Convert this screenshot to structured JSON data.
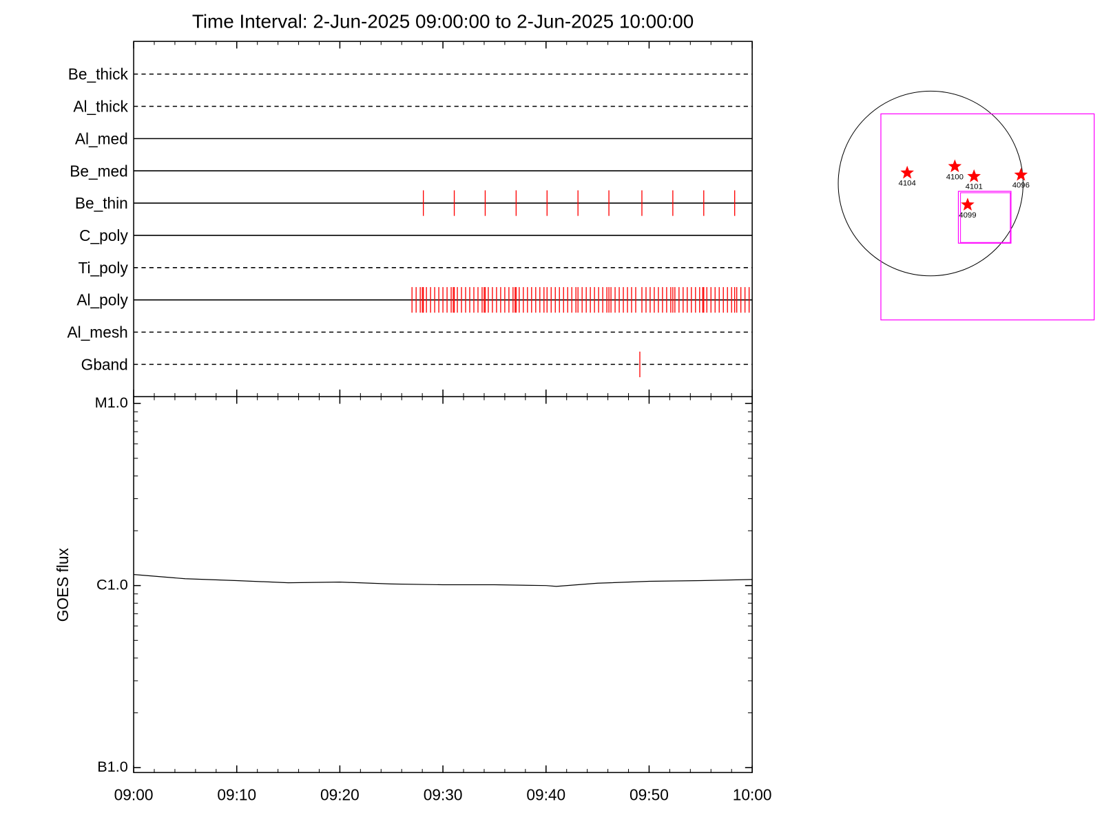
{
  "chart_data": [
    {
      "type": "event",
      "title": "Time Interval:  2-Jun-2025 09:00:00 to  2-Jun-2025 10:00:00",
      "color": "#ff0000",
      "channels": [
        {
          "name": "Be_thick",
          "style": "dashed",
          "events": []
        },
        {
          "name": "Al_thick",
          "style": "dashed",
          "events": []
        },
        {
          "name": "Al_med",
          "style": "solid",
          "events": []
        },
        {
          "name": "Be_med",
          "style": "solid",
          "events": []
        },
        {
          "name": "Be_thin",
          "style": "solid",
          "events": [
            28.1,
            31.1,
            34.1,
            37.1,
            40.1,
            43.1,
            46.1,
            49.3,
            52.3,
            55.3,
            58.3
          ]
        },
        {
          "name": "C_poly",
          "style": "solid",
          "events": []
        },
        {
          "name": "Ti_poly",
          "style": "dashed",
          "events": []
        },
        {
          "name": "Al_poly",
          "style": "solid",
          "events": [
            27.0,
            27.4,
            27.8,
            28.0,
            28.1,
            28.4,
            28.8,
            29.2,
            29.6,
            30.0,
            30.4,
            30.8,
            31.0,
            31.1,
            31.4,
            31.8,
            32.2,
            32.6,
            33.0,
            33.4,
            33.8,
            34.0,
            34.1,
            34.4,
            34.8,
            35.2,
            35.6,
            36.0,
            36.4,
            36.8,
            37.0,
            37.1,
            37.4,
            37.8,
            38.2,
            38.6,
            39.0,
            39.4,
            39.8,
            40.1,
            40.5,
            40.9,
            41.3,
            41.7,
            42.1,
            42.5,
            42.9,
            43.1,
            43.5,
            43.9,
            44.3,
            44.7,
            45.1,
            45.5,
            45.9,
            46.1,
            46.3,
            46.7,
            47.1,
            47.5,
            47.9,
            48.3,
            48.7,
            49.3,
            49.7,
            50.1,
            50.5,
            50.9,
            51.3,
            51.7,
            52.1,
            52.3,
            52.5,
            52.9,
            53.3,
            53.7,
            54.1,
            54.5,
            54.9,
            55.2,
            55.3,
            55.6,
            56.0,
            56.4,
            56.8,
            57.2,
            57.6,
            58.0,
            58.3,
            58.5,
            58.9,
            59.3,
            59.7
          ]
        },
        {
          "name": "Al_mesh",
          "style": "dashed",
          "events": []
        },
        {
          "name": "Gband",
          "style": "dashed",
          "events": [
            49.1
          ]
        }
      ]
    },
    {
      "type": "line",
      "ylabel": "GOES flux",
      "color": "#000000",
      "log_scale": true,
      "x": [
        0,
        5,
        10,
        15,
        20,
        25,
        30,
        35,
        40,
        41,
        45,
        50,
        55,
        60
      ],
      "values": [
        1.15e-06,
        1.09e-06,
        1.065e-06,
        1.036e-06,
        1.045e-06,
        1.02e-06,
        1.01e-06,
        1.01e-06,
        1e-06,
        9.9e-07,
        1.03e-06,
        1.055e-06,
        1.065e-06,
        1.08e-06
      ],
      "xlim": [
        0,
        60
      ],
      "xticks": [
        {
          "value": 0,
          "label": "09:00"
        },
        {
          "value": 10,
          "label": "09:10"
        },
        {
          "value": 20,
          "label": "09:20"
        },
        {
          "value": 30,
          "label": "09:30"
        },
        {
          "value": 40,
          "label": "09:40"
        },
        {
          "value": 50,
          "label": "09:50"
        },
        {
          "value": 60,
          "label": "10:00"
        }
      ],
      "ylim": [
        9.4e-08,
        1.09e-05
      ],
      "yticks": [
        {
          "value": 1e-07,
          "label": "B1.0"
        },
        {
          "value": 1e-06,
          "label": "C1.0"
        },
        {
          "value": 1e-05,
          "label": "M1.0"
        }
      ]
    },
    {
      "type": "map",
      "color": "#ff0000",
      "regions": [
        {
          "label": "4104"
        },
        {
          "label": "4100"
        },
        {
          "label": "4101"
        },
        {
          "label": "4096"
        },
        {
          "label": "4099"
        }
      ]
    }
  ]
}
